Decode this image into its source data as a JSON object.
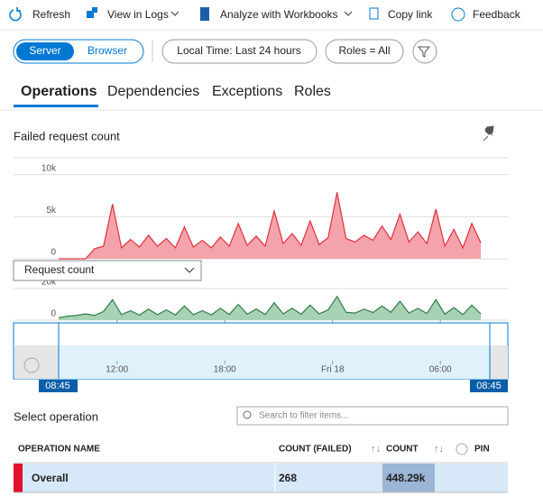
{
  "toolbar": {
    "items": [
      "Refresh",
      "View in Logs",
      "Analyze with Workbooks",
      "Copy link",
      "Feedback"
    ]
  },
  "filters": {
    "toggle": [
      "Server",
      "Browser"
    ],
    "pills": [
      "Local Time: Last 24 hours",
      "Roles = All"
    ]
  },
  "tabs": [
    "Operations",
    "Dependencies",
    "Exceptions",
    "Roles"
  ],
  "panel_title": "Failed request count",
  "x": [
    0,
    0.5,
    1,
    1.5,
    2,
    2.5,
    3,
    3.5,
    4,
    4.5,
    5,
    5.5,
    6,
    6.5,
    7,
    7.5,
    8,
    8.5,
    9,
    9.5,
    10,
    10.5,
    11,
    11.5,
    12,
    12.5,
    13,
    13.5,
    14,
    14.5,
    15,
    15.5,
    16,
    16.5,
    17,
    17.5,
    18,
    18.5,
    19,
    19.5,
    20,
    20.5,
    21,
    21.5,
    22,
    22.5,
    23,
    23.5
  ],
  "xlim": [
    0,
    24
  ],
  "xticks": [
    {
      "value": 3.25,
      "label": "12:00"
    },
    {
      "value": 9.25,
      "label": "18:00"
    },
    {
      "value": 15.25,
      "label": "Fri 18"
    },
    {
      "value": 21.25,
      "label": "06:00"
    }
  ],
  "charts": [
    {
      "ylim": [
        0,
        12000
      ],
      "yticks": [
        {
          "value": 0,
          "label": "0"
        },
        {
          "value": 5000,
          "label": "5k"
        },
        {
          "value": 10000,
          "label": "10k"
        }
      ],
      "color": "#e0303e",
      "fill": "#f4a3aa",
      "values": [
        0,
        0,
        0,
        0,
        1200,
        1500,
        6500,
        1300,
        2300,
        1400,
        2800,
        1500,
        2400,
        1300,
        3800,
        1400,
        2200,
        1300,
        2600,
        1500,
        4200,
        1600,
        2700,
        1500,
        5700,
        1800,
        3000,
        1600,
        4500,
        1700,
        2500,
        7900,
        2400,
        2000,
        2800,
        2200,
        3900,
        2300,
        5300,
        2000,
        3200,
        1800,
        5900,
        1500,
        3500,
        1300,
        4200,
        1900
      ]
    },
    {
      "dropdown": "Request count",
      "ylim": [
        0,
        24000
      ],
      "yticks": [
        {
          "value": 0,
          "label": "0"
        },
        {
          "value": 20000,
          "label": "20k"
        }
      ],
      "color": "#2e7d4a",
      "fill": "#a8d2b3",
      "values": [
        1500,
        2500,
        3000,
        4000,
        3000,
        5500,
        13000,
        3500,
        6000,
        3200,
        7000,
        3500,
        6500,
        3300,
        9000,
        3500,
        6000,
        3300,
        7500,
        3600,
        10000,
        3800,
        7000,
        3600,
        11000,
        4000,
        7500,
        3800,
        9500,
        4000,
        6500,
        15000,
        5000,
        4500,
        7000,
        4800,
        9000,
        5000,
        12000,
        4500,
        7500,
        4200,
        13000,
        3800,
        8000,
        3500,
        9500,
        4000
      ]
    }
  ],
  "brush": {
    "start": "08:45",
    "end": "08:45"
  },
  "select_operation": "Select operation",
  "search_placeholder": "Search to filter items...",
  "table": {
    "headers": [
      "OPERATION NAME",
      "COUNT (FAILED)",
      "COUNT",
      "PIN"
    ],
    "rows": [
      [
        "Overall",
        "268",
        "448.29k"
      ]
    ]
  }
}
